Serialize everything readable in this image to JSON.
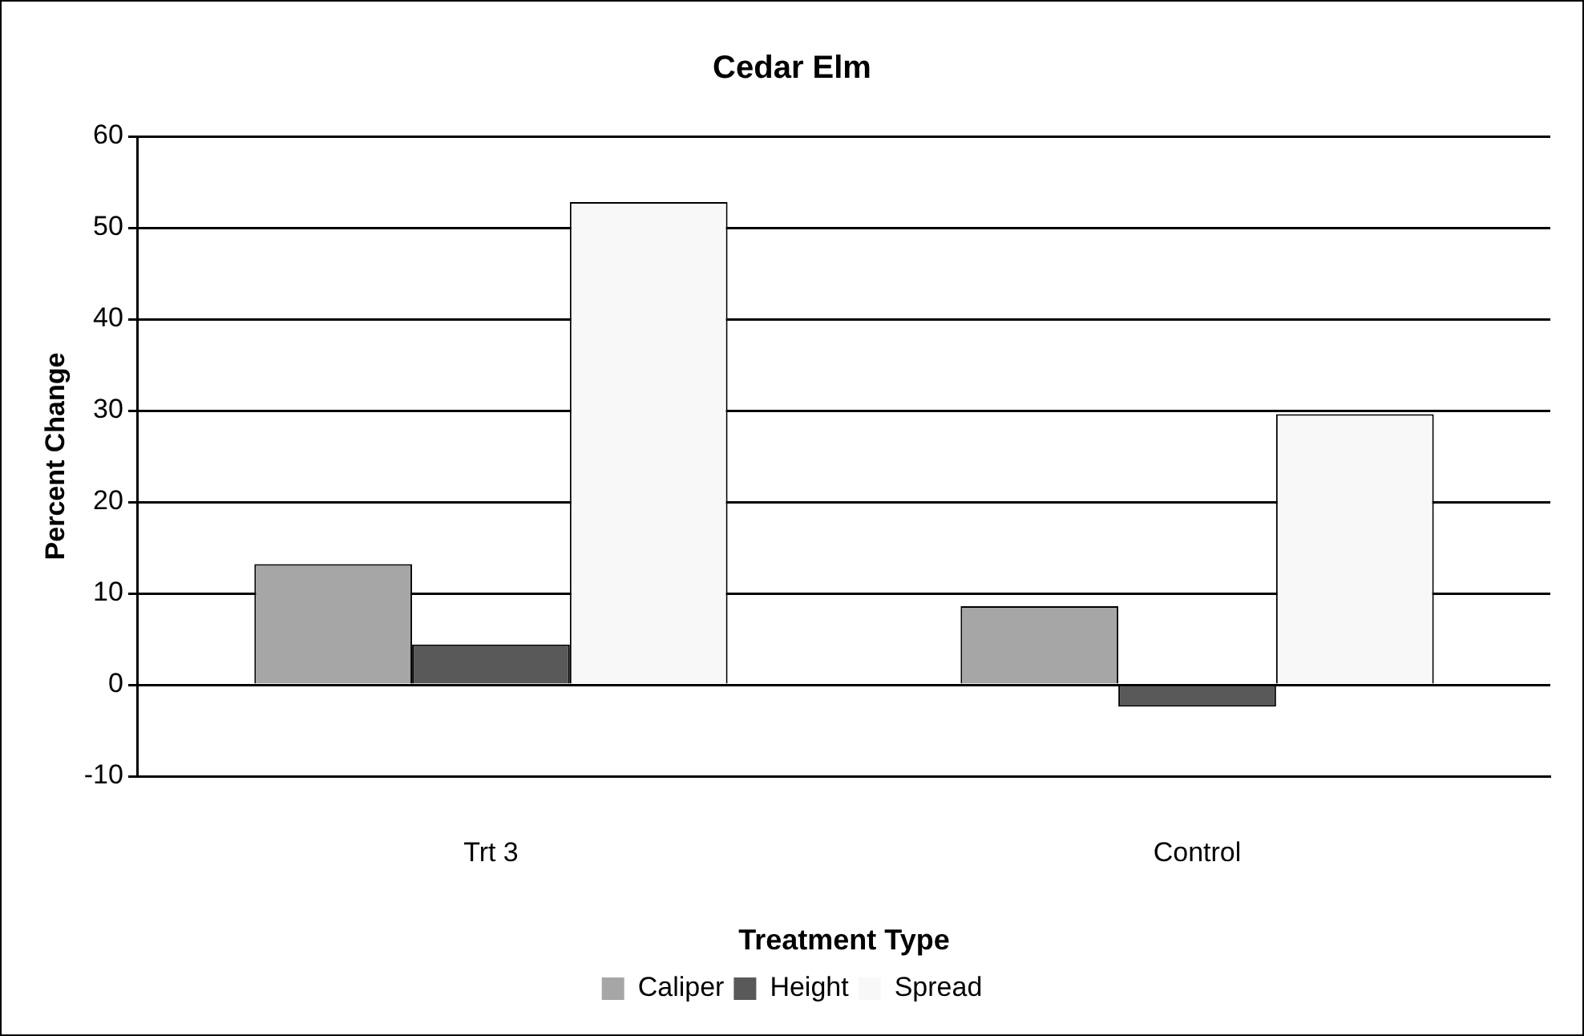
{
  "chart_data": {
    "type": "bar",
    "title": "Cedar Elm",
    "xlabel": "Treatment Type",
    "ylabel": "Percent Change",
    "categories": [
      "Trt 3",
      "Control"
    ],
    "series": [
      {
        "name": "Caliper",
        "color": "#a6a6a6",
        "values": [
          13.2,
          8.6
        ]
      },
      {
        "name": "Height",
        "color": "#595959",
        "values": [
          4.4,
          -2.4
        ]
      },
      {
        "name": "Spread",
        "color": "#f8f8f8",
        "values": [
          52.8,
          29.6
        ]
      }
    ],
    "ylim": [
      -10,
      60
    ],
    "yticks": [
      -10,
      0,
      10,
      20,
      30,
      40,
      50,
      60
    ],
    "grid": "y",
    "legend": "bottom"
  }
}
